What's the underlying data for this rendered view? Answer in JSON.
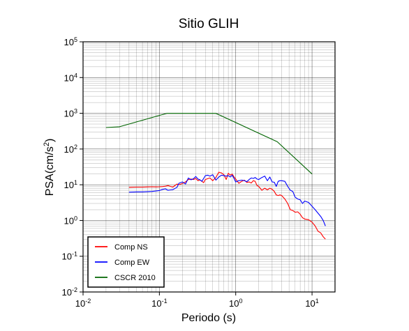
{
  "chart_data": {
    "type": "line",
    "title": "Sitio GLIH",
    "xlabel": "Periodo (s)",
    "ylabel_base": "PSA(cm/s",
    "ylabel_exp": "2",
    "ylabel_close": ")",
    "xscale": "log",
    "yscale": "log",
    "xlim": [
      0.01,
      20
    ],
    "ylim": [
      0.01,
      100000
    ],
    "grid": true,
    "legend_position": "bottom-left",
    "x_ticks": [
      {
        "value": 0.01,
        "base": "10",
        "exp": "-2"
      },
      {
        "value": 0.1,
        "base": "10",
        "exp": "-1"
      },
      {
        "value": 1,
        "base": "10",
        "exp": "0"
      },
      {
        "value": 10,
        "base": "10",
        "exp": "1"
      }
    ],
    "y_ticks": [
      {
        "value": 0.01,
        "base": "10",
        "exp": "-2"
      },
      {
        "value": 0.1,
        "base": "10",
        "exp": "-1"
      },
      {
        "value": 1,
        "base": "10",
        "exp": "0"
      },
      {
        "value": 10,
        "base": "10",
        "exp": "1"
      },
      {
        "value": 100,
        "base": "10",
        "exp": "2"
      },
      {
        "value": 1000,
        "base": "10",
        "exp": "3"
      },
      {
        "value": 10000,
        "base": "10",
        "exp": "4"
      },
      {
        "value": 100000,
        "base": "10",
        "exp": "5"
      }
    ],
    "series": [
      {
        "name": "Comp NS",
        "color": "#ff0000",
        "x": [
          0.04,
          0.05,
          0.06,
          0.07,
          0.08,
          0.09,
          0.1,
          0.11,
          0.12,
          0.13,
          0.14,
          0.15,
          0.17,
          0.18,
          0.2,
          0.22,
          0.24,
          0.26,
          0.28,
          0.3,
          0.32,
          0.34,
          0.36,
          0.38,
          0.4,
          0.43,
          0.46,
          0.5,
          0.55,
          0.6,
          0.65,
          0.7,
          0.75,
          0.8,
          0.85,
          0.9,
          0.95,
          1.0,
          1.1,
          1.2,
          1.3,
          1.4,
          1.5,
          1.6,
          1.7,
          1.8,
          1.9,
          2.0,
          2.2,
          2.4,
          2.6,
          2.8,
          3.0,
          3.2,
          3.4,
          3.6,
          3.8,
          4.0,
          4.4,
          4.8,
          5.2,
          5.6,
          6.0,
          6.5,
          7.0,
          7.5,
          8.0,
          9.0,
          10.0,
          11.0,
          12.0,
          13.0,
          14.0,
          15.0
        ],
        "y": [
          8.5,
          8.6,
          8.6,
          8.7,
          8.8,
          8.7,
          8.8,
          8.9,
          9.1,
          9.5,
          9.0,
          8.6,
          10.5,
          10.0,
          10.8,
          12.0,
          14.0,
          14.5,
          14.0,
          15.0,
          13.0,
          13.6,
          12.5,
          11.5,
          14.0,
          14.8,
          15.5,
          13.0,
          16.0,
          22.5,
          21.5,
          19.0,
          14.0,
          21.0,
          18.5,
          20.0,
          16.5,
          14.5,
          11.0,
          12.5,
          13.5,
          11.6,
          12.0,
          11.2,
          13.0,
          12.5,
          9.5,
          9.0,
          7.0,
          8.0,
          7.2,
          8.0,
          7.5,
          6.5,
          5.2,
          5.0,
          5.2,
          5.0,
          4.0,
          3.0,
          2.0,
          1.9,
          1.7,
          1.75,
          1.5,
          1.2,
          1.1,
          1.05,
          0.9,
          0.7,
          0.5,
          0.45,
          0.35,
          0.3
        ]
      },
      {
        "name": "Comp EW",
        "color": "#0000ff",
        "x": [
          0.04,
          0.05,
          0.06,
          0.07,
          0.08,
          0.09,
          0.1,
          0.11,
          0.12,
          0.13,
          0.14,
          0.15,
          0.17,
          0.18,
          0.2,
          0.22,
          0.24,
          0.26,
          0.28,
          0.3,
          0.32,
          0.34,
          0.36,
          0.38,
          0.4,
          0.43,
          0.46,
          0.5,
          0.55,
          0.6,
          0.65,
          0.7,
          0.75,
          0.8,
          0.85,
          0.9,
          0.95,
          1.0,
          1.1,
          1.2,
          1.3,
          1.4,
          1.5,
          1.6,
          1.7,
          1.8,
          1.9,
          2.0,
          2.2,
          2.4,
          2.6,
          2.8,
          3.0,
          3.2,
          3.4,
          3.6,
          3.8,
          4.0,
          4.4,
          4.8,
          5.2,
          5.6,
          6.0,
          6.5,
          7.0,
          7.5,
          8.0,
          9.0,
          10.0,
          11.0,
          12.0,
          13.0,
          14.0,
          15.0
        ],
        "y": [
          6.2,
          6.3,
          6.3,
          6.4,
          6.5,
          6.7,
          6.9,
          7.4,
          7.7,
          7.0,
          7.2,
          7.3,
          8.5,
          11.0,
          12.0,
          10.5,
          15.5,
          13.8,
          14.8,
          17.0,
          14.5,
          13.8,
          12.5,
          15.0,
          18.0,
          18.5,
          17.5,
          19.0,
          13.5,
          16.5,
          18.5,
          18.0,
          17.5,
          18.0,
          16.5,
          18.5,
          15.0,
          12.0,
          13.0,
          13.5,
          13.0,
          12.2,
          14.0,
          15.5,
          15.0,
          16.0,
          14.5,
          14.0,
          16.0,
          17.5,
          13.0,
          16.5,
          12.0,
          11.8,
          9.0,
          12.5,
          13.0,
          13.0,
          12.5,
          9.0,
          7.0,
          6.5,
          4.5,
          4.0,
          3.8,
          3.0,
          3.5,
          3.2,
          2.5,
          2.0,
          1.6,
          1.3,
          1.0,
          0.7
        ]
      },
      {
        "name": "CSCR 2010",
        "color": "#006400",
        "x": [
          0.02,
          0.03,
          0.125,
          0.55,
          3.5,
          10
        ],
        "y": [
          400,
          420,
          1000,
          1000,
          160,
          20
        ]
      }
    ]
  }
}
